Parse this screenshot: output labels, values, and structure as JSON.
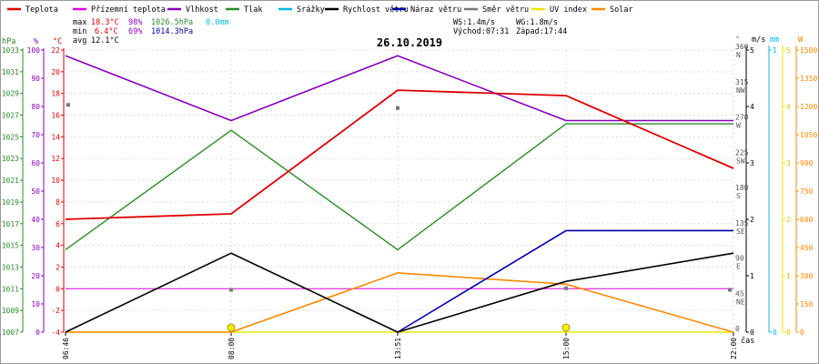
{
  "chart_data": {
    "type": "line",
    "title": "26.10.2019",
    "legend": [
      {
        "name": "Teplota",
        "color": "#dd0000"
      },
      {
        "name": "Přízemní teplota",
        "color": "#e000e0"
      },
      {
        "name": "Vlhkost",
        "color": "#8800bb"
      },
      {
        "name": "Tlak",
        "color": "#2a8a2a"
      },
      {
        "name": "Srážky",
        "color": "#00bbdd"
      },
      {
        "name": "Rychlost větru",
        "color": "#000000"
      },
      {
        "name": "Náraz větru",
        "color": "#0000aa"
      },
      {
        "name": "Směr větru",
        "color": "#777777"
      },
      {
        "name": "UV index",
        "color": "#e8e800"
      },
      {
        "name": "Solar",
        "color": "#ff8800"
      }
    ],
    "stats": {
      "max_label": "max",
      "max_temp": "18.3°C",
      "max_hum": "98%",
      "max_press": "1026.5hPa",
      "max_rain": "0.0mm",
      "min_label": "min",
      "min_temp": "6.4°C",
      "min_hum": "69%",
      "min_press": "1014.3hPa",
      "avg_label": "avg",
      "avg_temp": "12.1°C",
      "ws": "WS:1.4m/s",
      "wg": "WG:1.8m/s",
      "sunrise": "Východ:07:31",
      "sunset": "Západ:17:44"
    },
    "x_ticks": [
      "06:46",
      "08:00",
      "13:51",
      "15:00",
      "22:00"
    ],
    "x_label": "čas",
    "left_axes": {
      "hpa_label": "hPa",
      "pct_label": "%",
      "c_label": "°C",
      "hpa_ticks": [
        "1033",
        "1031",
        "1029",
        "1027",
        "1025",
        "1023",
        "1021",
        "1019",
        "1017",
        "1015",
        "1013",
        "1011",
        "1009",
        "1007"
      ],
      "pct_ticks": [
        "100",
        "90",
        "80",
        "70",
        "60",
        "50",
        "40",
        "30",
        "20",
        "10",
        "0"
      ],
      "c_ticks": [
        "22",
        "20",
        "18",
        "16",
        "14",
        "12",
        "10",
        "8",
        "6",
        "4",
        "2",
        "0",
        "-2",
        "-4"
      ]
    },
    "right_axes": {
      "deg_label": "°",
      "ms_label": "m/s",
      "mm_label": "mm",
      "w_label": "W",
      "deg_ticks": [
        {
          "v": 360,
          "dir": "N"
        },
        {
          "v": 315,
          "dir": "NW"
        },
        {
          "v": 270,
          "dir": "W"
        },
        {
          "v": 225,
          "dir": "SW"
        },
        {
          "v": 180,
          "dir": "S"
        },
        {
          "v": 135,
          "dir": "SE"
        },
        {
          "v": 90,
          "dir": "E"
        },
        {
          "v": 45,
          "dir": "NE"
        },
        {
          "v": 0,
          "dir": ""
        }
      ],
      "ms_ticks": [
        "5",
        "4",
        "3",
        "2",
        "1",
        "0"
      ],
      "mm_ticks": [
        "1",
        "0"
      ],
      "uv_ticks": [
        "5",
        "4",
        "3",
        "2",
        "1",
        "0"
      ],
      "w_ticks": [
        "1500",
        "1350",
        "1200",
        "1050",
        "900",
        "750",
        "600",
        "450",
        "300",
        "150",
        "0"
      ]
    },
    "series": [
      {
        "name": "Teplota",
        "unit": "°C",
        "values": [
          6.4,
          6.9,
          18.3,
          17.8,
          11.1
        ]
      },
      {
        "name": "Přízemní teplota",
        "unit": "°C",
        "values": [
          0,
          0,
          0,
          0,
          0
        ]
      },
      {
        "name": "Vlhkost",
        "unit": "%",
        "values": [
          98,
          75,
          98,
          75,
          75
        ]
      },
      {
        "name": "Tlak",
        "unit": "hPa",
        "values": [
          1014.6,
          1025.6,
          1014.6,
          1026.2,
          1026.2
        ]
      },
      {
        "name": "Rychlost větru",
        "unit": "m/s",
        "values": [
          0,
          1.4,
          0,
          0.9,
          1.4
        ]
      },
      {
        "name": "Náraz větru",
        "unit": "m/s",
        "values": [
          null,
          null,
          0,
          1.8,
          1.8
        ]
      },
      {
        "name": "Směr větru",
        "unit": "°",
        "values": [
          290,
          54,
          286,
          56,
          54
        ]
      },
      {
        "name": "UV index",
        "unit": "",
        "values": [
          0,
          0,
          0,
          0,
          0
        ]
      },
      {
        "name": "Solar",
        "unit": "W",
        "values": [
          0,
          0,
          315,
          255,
          0
        ]
      }
    ]
  }
}
